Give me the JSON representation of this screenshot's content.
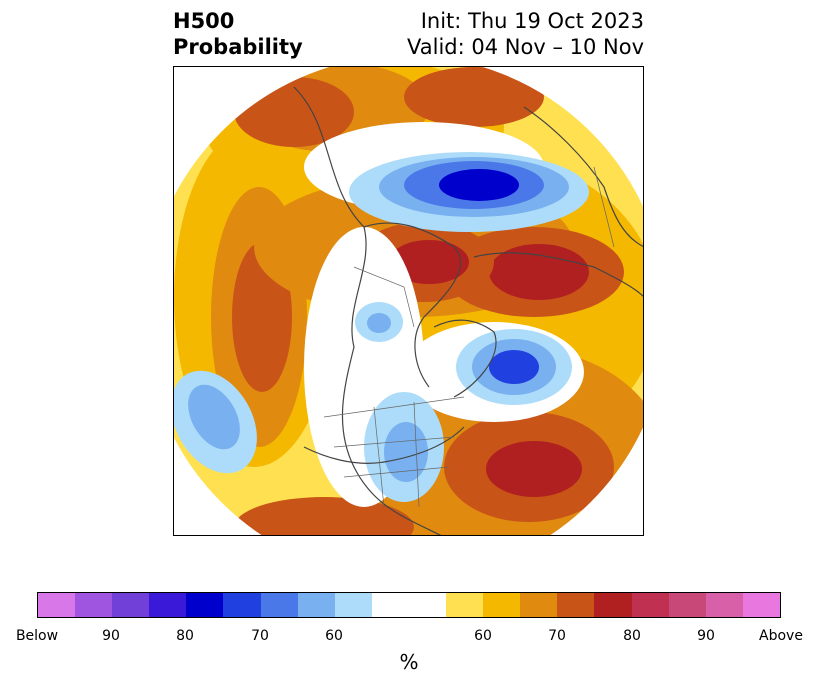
{
  "title": {
    "left_line1": "H500",
    "left_line2": "Probability",
    "right_line1": "Init: Thu 19 Oct 2023",
    "right_line2": "Valid: 04 Nov – 10 Nov"
  },
  "colorbar": {
    "unit": "%",
    "colors": [
      "#d878e8",
      "#a055e0",
      "#7040d8",
      "#3a1ad8",
      "#0000cc",
      "#2040e0",
      "#4a78e8",
      "#78b0f0",
      "#acdcfa",
      "#ffffff",
      "#ffffff",
      "#ffe050",
      "#f5b800",
      "#e08a10",
      "#c85418",
      "#b02020",
      "#c03050",
      "#c84878",
      "#d860a8",
      "#e878e0"
    ],
    "tick_labels": [
      "Below",
      "90",
      "80",
      "70",
      "60",
      "60",
      "70",
      "80",
      "90",
      "Above"
    ]
  },
  "map": {
    "projection": "north polar stereographic",
    "features": [
      "coastlines",
      "country borders",
      "US state borders"
    ]
  }
}
